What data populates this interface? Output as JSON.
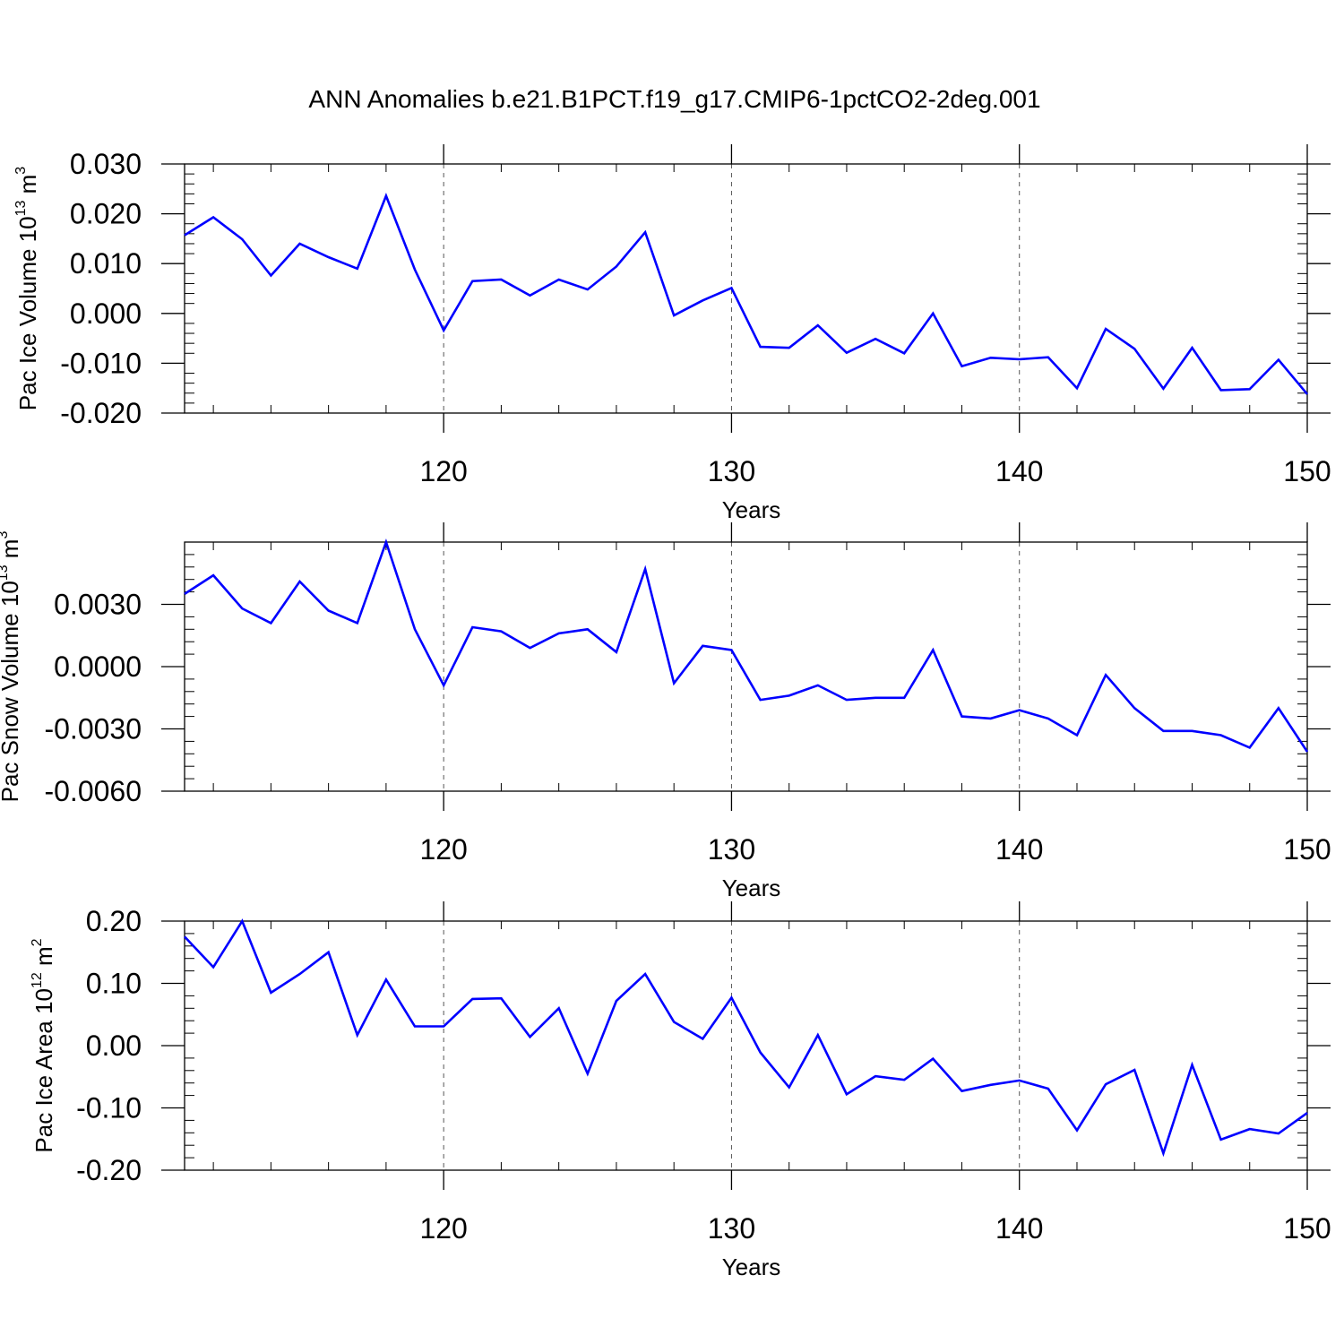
{
  "title": "ANN Anomalies b.e21.B1PCT.f19_g17.CMIP6-1pctCO2-2deg.001",
  "colors": {
    "line": "#0000ff",
    "axis": "#000000",
    "grid": "#555555"
  },
  "chart_data": [
    {
      "type": "line",
      "xlabel": "Years",
      "ylabel": {
        "main": "Pac Ice Volume 10",
        "exp": "13",
        "unit": " m",
        "unit_exp": "3"
      },
      "xlim": [
        111,
        150
      ],
      "ylim": [
        -0.02,
        0.03
      ],
      "xticks": [
        120,
        130,
        140,
        150
      ],
      "yticks": [
        -0.02,
        -0.01,
        0.0,
        0.01,
        0.02,
        0.03
      ],
      "ytick_labels": [
        "-0.020",
        "-0.010",
        "0.000",
        "0.010",
        "0.020",
        "0.030"
      ],
      "grid": "vertical dashed at major x ticks",
      "series": [
        {
          "x": [
            111,
            112,
            113,
            114,
            115,
            116,
            117,
            118,
            119,
            120,
            121,
            122,
            123,
            124,
            125,
            126,
            127,
            128,
            129,
            130,
            131,
            132,
            133,
            134,
            135,
            136,
            137,
            138,
            139,
            140,
            141,
            142,
            143,
            144,
            145,
            146,
            147,
            148,
            149,
            150
          ],
          "values": [
            0.0157,
            0.0193,
            0.0149,
            0.0076,
            0.014,
            0.0113,
            0.009,
            0.0236,
            0.0088,
            -0.0034,
            0.0065,
            0.0068,
            0.0036,
            0.0068,
            0.0048,
            0.0094,
            0.0163,
            -0.0004,
            0.0026,
            0.0051,
            -0.0067,
            -0.0069,
            -0.0024,
            -0.0079,
            -0.0051,
            -0.008,
            0.0,
            -0.0106,
            -0.0089,
            -0.0092,
            -0.0088,
            -0.015,
            -0.0031,
            -0.0071,
            -0.0151,
            -0.0069,
            -0.0154,
            -0.0152,
            -0.0093,
            -0.0162
          ]
        }
      ]
    },
    {
      "type": "line",
      "xlabel": "Years",
      "ylabel": {
        "main": "Pac Snow Volume 10",
        "exp": "13",
        "unit": " m",
        "unit_exp": "3"
      },
      "xlim": [
        111,
        150
      ],
      "ylim": [
        -0.006,
        0.006
      ],
      "xticks": [
        120,
        130,
        140,
        150
      ],
      "yticks": [
        -0.006,
        -0.003,
        0.0,
        0.003
      ],
      "ytick_labels": [
        "-0.0060",
        "-0.0030",
        "0.0000",
        "0.0030"
      ],
      "grid": "vertical dashed at major x ticks",
      "series": [
        {
          "x": [
            111,
            112,
            113,
            114,
            115,
            116,
            117,
            118,
            119,
            120,
            121,
            122,
            123,
            124,
            125,
            126,
            127,
            128,
            129,
            130,
            131,
            132,
            133,
            134,
            135,
            136,
            137,
            138,
            139,
            140,
            141,
            142,
            143,
            144,
            145,
            146,
            147,
            148,
            149,
            150
          ],
          "values": [
            0.0035,
            0.0044,
            0.0028,
            0.0021,
            0.0041,
            0.0027,
            0.0021,
            0.006,
            0.0018,
            -0.0009,
            0.0019,
            0.0017,
            0.0009,
            0.0016,
            0.0018,
            0.0007,
            0.0047,
            -0.0008,
            0.001,
            0.0008,
            -0.0016,
            -0.0014,
            -0.0009,
            -0.0016,
            -0.0015,
            -0.0015,
            0.0008,
            -0.0024,
            -0.0025,
            -0.0021,
            -0.0025,
            -0.0033,
            -0.0004,
            -0.002,
            -0.0031,
            -0.0031,
            -0.0033,
            -0.0039,
            -0.002,
            -0.0041
          ]
        }
      ]
    },
    {
      "type": "line",
      "xlabel": "Years",
      "ylabel": {
        "main": "Pac Ice Area 10",
        "exp": "12",
        "unit": " m",
        "unit_exp": "2"
      },
      "xlim": [
        111,
        150
      ],
      "ylim": [
        -0.2,
        0.2
      ],
      "xticks": [
        120,
        130,
        140,
        150
      ],
      "yticks": [
        -0.2,
        -0.1,
        0.0,
        0.1,
        0.2
      ],
      "ytick_labels": [
        "-0.20",
        "-0.10",
        "0.00",
        "0.10",
        "0.20"
      ],
      "grid": "vertical dashed at major x ticks",
      "series": [
        {
          "x": [
            111,
            112,
            113,
            114,
            115,
            116,
            117,
            118,
            119,
            120,
            121,
            122,
            123,
            124,
            125,
            126,
            127,
            128,
            129,
            130,
            131,
            132,
            133,
            134,
            135,
            136,
            137,
            138,
            139,
            140,
            141,
            142,
            143,
            144,
            145,
            146,
            147,
            148,
            149,
            150
          ],
          "values": [
            0.175,
            0.126,
            0.2,
            0.085,
            0.115,
            0.15,
            0.017,
            0.106,
            0.031,
            0.031,
            0.075,
            0.076,
            0.014,
            0.06,
            -0.045,
            0.072,
            0.115,
            0.038,
            0.011,
            0.077,
            -0.011,
            -0.067,
            0.017,
            -0.078,
            -0.049,
            -0.055,
            -0.021,
            -0.073,
            -0.063,
            -0.056,
            -0.069,
            -0.136,
            -0.062,
            -0.039,
            -0.173,
            -0.031,
            -0.151,
            -0.134,
            -0.141,
            -0.108
          ]
        }
      ]
    }
  ]
}
